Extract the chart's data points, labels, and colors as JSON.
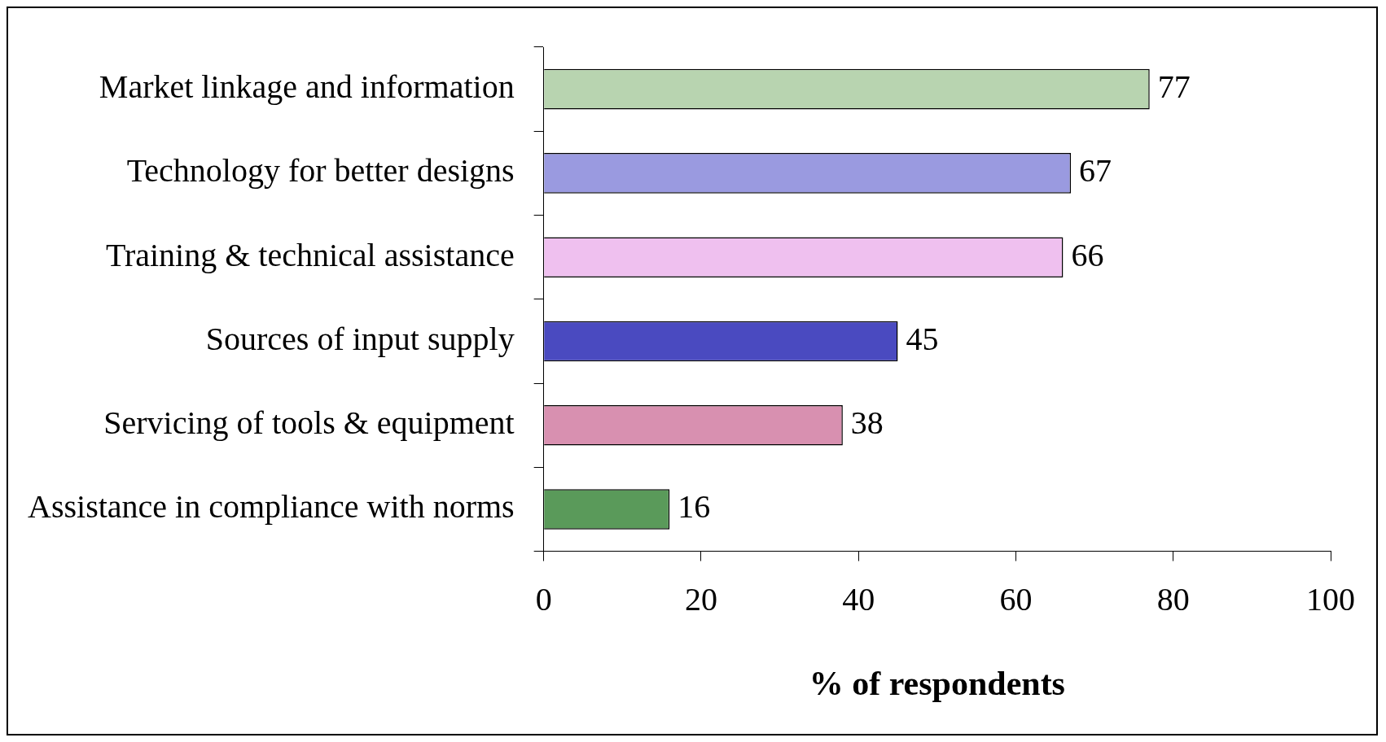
{
  "chart_data": {
    "type": "bar",
    "orientation": "horizontal",
    "xlabel": "% of respondents",
    "categories": [
      "Market linkage and information",
      "Technology for better designs",
      "Training & technical assistance",
      "Sources of input supply",
      "Servicing of tools & equipment",
      "Assistance in compliance with norms"
    ],
    "values": [
      77,
      67,
      66,
      45,
      38,
      16
    ],
    "colors": [
      "#b8d4b0",
      "#9a9ae0",
      "#efc0ef",
      "#4a4ac0",
      "#d890b0",
      "#5a9a5a"
    ],
    "xlim": [
      0,
      100
    ],
    "xticks": [
      0,
      20,
      40,
      60,
      80,
      100
    ],
    "data_labels": true,
    "grid": false,
    "legend": false
  }
}
